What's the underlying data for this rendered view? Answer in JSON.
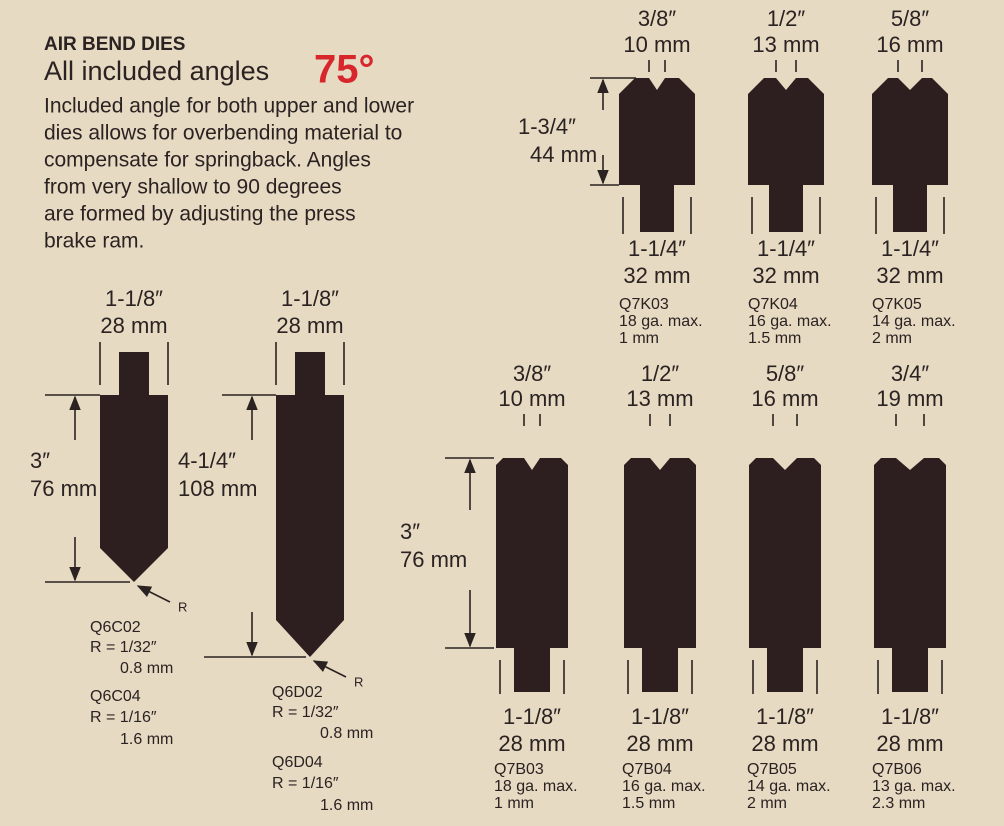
{
  "header": {
    "title": "AIR BEND DIES",
    "subtitle": "All included angles",
    "angle": "75°",
    "description": [
      "Included angle for both upper and lower",
      "dies allows for overbending material to",
      "compensate for springback. Angles",
      "from very shallow to 90 degrees",
      "are formed by adjusting the press",
      "brake ram."
    ]
  },
  "upper_dies": [
    {
      "width": "1-1/8″",
      "width_mm": "28 mm",
      "height": "3″",
      "height_mm": "76 mm",
      "radius_marker": "R",
      "models": [
        {
          "name": "Q6C02",
          "radius": "R = 1/32″",
          "radius_mm": "0.8 mm"
        },
        {
          "name": "Q6C04",
          "radius": "R = 1/16″",
          "radius_mm": "1.6 mm"
        }
      ]
    },
    {
      "width": "1-1/8″",
      "width_mm": "28 mm",
      "height": "4-1/4″",
      "height_mm": "108 mm",
      "radius_marker": "R",
      "models": [
        {
          "name": "Q6D02",
          "radius": "R = 1/32″",
          "radius_mm": "0.8 mm"
        },
        {
          "name": "Q6D04",
          "radius": "R = 1/16″",
          "radius_mm": "1.6 mm"
        }
      ]
    }
  ],
  "lower_dies_short": {
    "height": "1-3/4″",
    "height_mm": "44 mm",
    "dies": [
      {
        "opening": "3/8″",
        "opening_mm": "10 mm",
        "tang": "1-1/4″",
        "tang_mm": "32 mm",
        "model": "Q7K03",
        "capacity": "18 ga. max.",
        "thickness": "1 mm"
      },
      {
        "opening": "1/2″",
        "opening_mm": "13 mm",
        "tang": "1-1/4″",
        "tang_mm": "32 mm",
        "model": "Q7K04",
        "capacity": "16 ga. max.",
        "thickness": "1.5 mm"
      },
      {
        "opening": "5/8″",
        "opening_mm": "16 mm",
        "tang": "1-1/4″",
        "tang_mm": "32 mm",
        "model": "Q7K05",
        "capacity": "14 ga. max.",
        "thickness": "2 mm"
      }
    ]
  },
  "lower_dies_tall": {
    "height": "3″",
    "height_mm": "76 mm",
    "dies": [
      {
        "opening": "3/8″",
        "opening_mm": "10 mm",
        "tang": "1-1/8″",
        "tang_mm": "28 mm",
        "model": "Q7B03",
        "capacity": "18 ga. max.",
        "thickness": "1 mm"
      },
      {
        "opening": "1/2″",
        "opening_mm": "13 mm",
        "tang": "1-1/8″",
        "tang_mm": "28 mm",
        "model": "Q7B04",
        "capacity": "16 ga. max.",
        "thickness": "1.5 mm"
      },
      {
        "opening": "5/8″",
        "opening_mm": "16 mm",
        "tang": "1-1/8″",
        "tang_mm": "28 mm",
        "model": "Q7B05",
        "capacity": "14 ga. max.",
        "thickness": "2 mm"
      },
      {
        "opening": "3/4″",
        "opening_mm": "19 mm",
        "tang": "1-1/8″",
        "tang_mm": "28 mm",
        "model": "Q7B06",
        "capacity": "13 ga. max.",
        "thickness": "2.3 mm"
      }
    ]
  }
}
